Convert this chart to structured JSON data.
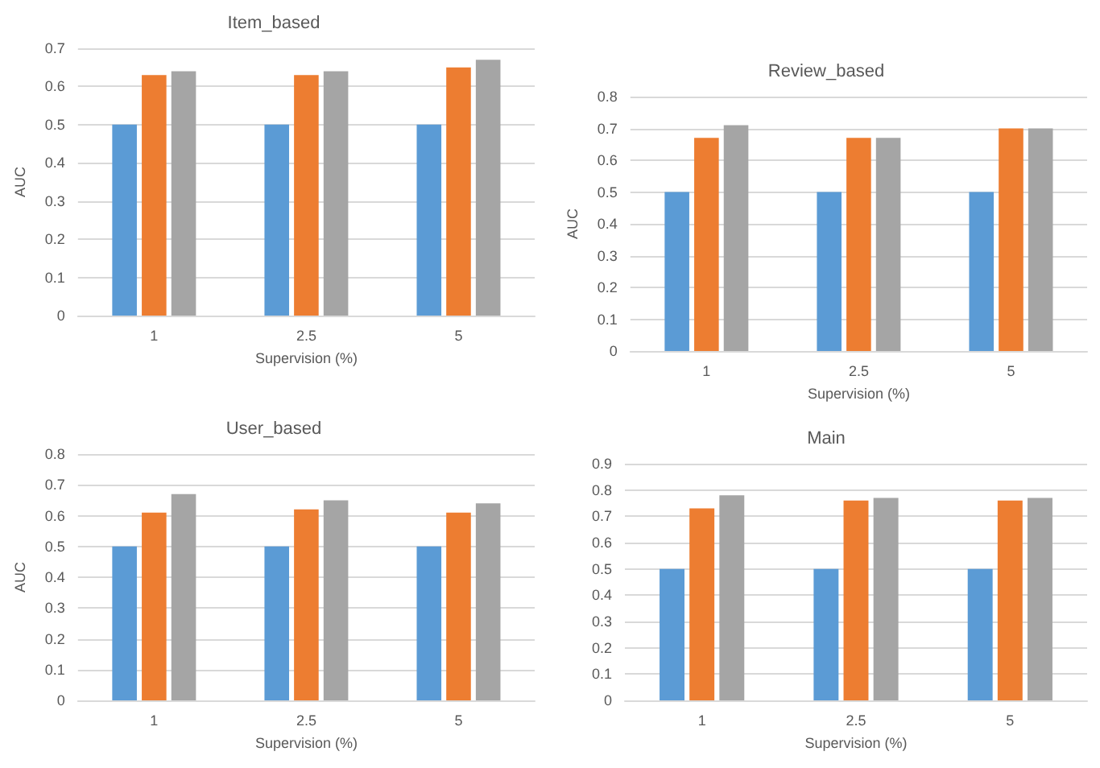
{
  "chart_data": [
    {
      "type": "bar",
      "title": "Item_based",
      "xlabel": "Supervision (%)",
      "ylabel": "AUC",
      "categories": [
        "1",
        "2.5",
        "5"
      ],
      "series": [
        {
          "color": "#5b9bd5",
          "values": [
            0.5,
            0.5,
            0.5
          ]
        },
        {
          "color": "#ed7d31",
          "values": [
            0.63,
            0.63,
            0.65
          ]
        },
        {
          "color": "#a5a5a5",
          "values": [
            0.64,
            0.64,
            0.67
          ]
        }
      ],
      "ylim": [
        0,
        0.7
      ],
      "yticks": [
        0,
        0.1,
        0.2,
        0.3,
        0.4,
        0.5,
        0.6,
        0.7
      ],
      "grid": "y"
    },
    {
      "type": "bar",
      "title": "Review_based",
      "xlabel": "Supervision (%)",
      "ylabel": "AUC",
      "categories": [
        "1",
        "2.5",
        "5"
      ],
      "series": [
        {
          "color": "#5b9bd5",
          "values": [
            0.5,
            0.5,
            0.5
          ]
        },
        {
          "color": "#ed7d31",
          "values": [
            0.67,
            0.67,
            0.7
          ]
        },
        {
          "color": "#a5a5a5",
          "values": [
            0.71,
            0.67,
            0.7
          ]
        }
      ],
      "ylim": [
        0,
        0.8
      ],
      "yticks": [
        0,
        0.1,
        0.2,
        0.3,
        0.4,
        0.5,
        0.6,
        0.7,
        0.8
      ],
      "grid": "y"
    },
    {
      "type": "bar",
      "title": "User_based",
      "xlabel": "Supervision (%)",
      "ylabel": "AUC",
      "categories": [
        "1",
        "2.5",
        "5"
      ],
      "series": [
        {
          "color": "#5b9bd5",
          "values": [
            0.5,
            0.5,
            0.5
          ]
        },
        {
          "color": "#ed7d31",
          "values": [
            0.61,
            0.62,
            0.61
          ]
        },
        {
          "color": "#a5a5a5",
          "values": [
            0.67,
            0.65,
            0.64
          ]
        }
      ],
      "ylim": [
        0,
        0.8
      ],
      "yticks": [
        0,
        0.1,
        0.2,
        0.3,
        0.4,
        0.5,
        0.6,
        0.7,
        0.8
      ],
      "grid": "y"
    },
    {
      "type": "bar",
      "title": "Main",
      "xlabel": "Supervision (%)",
      "categories": [
        "1",
        "2.5",
        "5"
      ],
      "series": [
        {
          "color": "#5b9bd5",
          "values": [
            0.5,
            0.5,
            0.5
          ]
        },
        {
          "color": "#ed7d31",
          "values": [
            0.73,
            0.76,
            0.76
          ]
        },
        {
          "color": "#a5a5a5",
          "values": [
            0.78,
            0.77,
            0.77
          ]
        }
      ],
      "ylim": [
        0,
        0.9
      ],
      "yticks": [
        0,
        0.1,
        0.2,
        0.3,
        0.4,
        0.5,
        0.6,
        0.7,
        0.8,
        0.9
      ],
      "grid": "y"
    }
  ]
}
